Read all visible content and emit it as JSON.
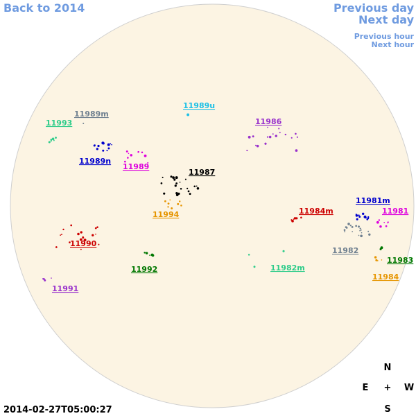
{
  "nav": {
    "back": "Back to 2014",
    "previous_day": "Previous day",
    "next_day": "Next day",
    "previous_hour": "Previous hour",
    "next_hour": "Next hour"
  },
  "regions": [
    {
      "label": "11993",
      "color": "#2ecc8a"
    },
    {
      "label": "11989m",
      "color": "#708090"
    },
    {
      "label": "11989u",
      "color": "#1ec0e6"
    },
    {
      "label": "11986",
      "color": "#9932cc"
    },
    {
      "label": "11989n",
      "color": "#0000cd"
    },
    {
      "label": "11989",
      "color": "#dd00dd"
    },
    {
      "label": "11987",
      "color": "#000000"
    },
    {
      "label": "11994",
      "color": "#e69500"
    },
    {
      "label": "11984m",
      "color": "#cc0000"
    },
    {
      "label": "11981m",
      "color": "#0000cd"
    },
    {
      "label": "11981",
      "color": "#dd00dd"
    },
    {
      "label": "11982",
      "color": "#708090"
    },
    {
      "label": "11990",
      "color": "#cc0000"
    },
    {
      "label": "11992",
      "color": "#007700"
    },
    {
      "label": "11982m",
      "color": "#2ecc8a"
    },
    {
      "label": "11983",
      "color": "#007700"
    },
    {
      "label": "11984",
      "color": "#e69500"
    },
    {
      "label": "11991",
      "color": "#9932cc"
    }
  ],
  "compass": {
    "north": "N",
    "east": "E",
    "center": "+",
    "west": "W",
    "south": "S"
  },
  "timestamp": "2014-02-27T05:00:27"
}
